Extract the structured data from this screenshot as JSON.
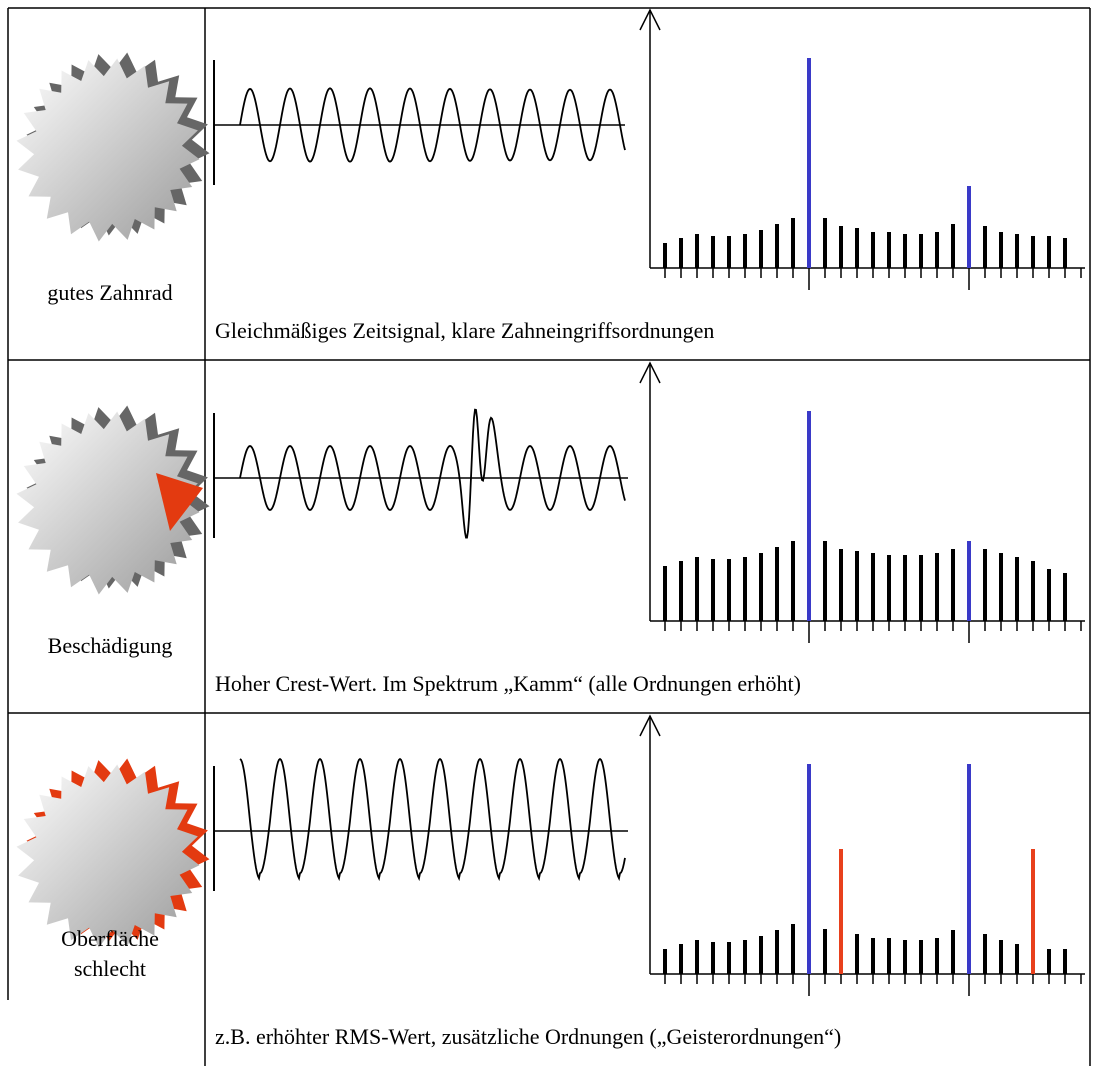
{
  "rows": [
    {
      "label": [
        "gutes Zahnrad"
      ],
      "caption": "Gleichmäßiges Zeitsignal, klare Zahneingriffsordnungen"
    },
    {
      "label": [
        "Beschädigung"
      ],
      "caption": "Hoher Crest-Wert. Im Spektrum „Kamm“ (alle Ordnungen erhöht)"
    },
    {
      "label": [
        "Oberfläche",
        "schlecht"
      ],
      "caption": "z.B. erhöhter RMS-Wert, zusätzliche Ordnungen („Geisterordnungen“)"
    }
  ]
}
